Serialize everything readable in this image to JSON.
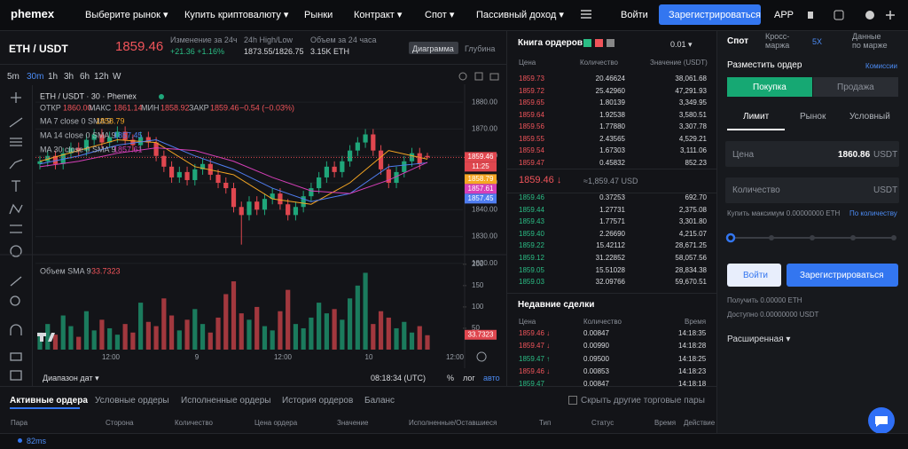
{
  "nav": {
    "logo": "phemex",
    "items": [
      "Выберите рынок ▾",
      "Купить криптовалюту ▾",
      "Рынки",
      "Контракт ▾",
      "Спот ▾",
      "Пассивный доход ▾"
    ],
    "login": "Войти",
    "register": "Зарегистрироваться",
    "app": "APP"
  },
  "ticker": {
    "pair": "ETH / USDT",
    "price": "1859.46",
    "change_label": "Изменение за 24ч",
    "change": "+21.36 +1.16%",
    "high_low_label": "24h High/Low",
    "high_low": "1873.55/1826.75",
    "volume_label": "Объем за 24 часа",
    "volume": "3.15K ETH",
    "chart_button": "Диаграмма",
    "depth_button": "Глубина"
  },
  "timeframes": [
    "5m",
    "30m",
    "1h",
    "3h",
    "6h",
    "12h",
    "W"
  ],
  "legend": {
    "title": "ETH / USDT · 30 · Phemex",
    "open_label": "ОТКР",
    "open": "1860.00",
    "high_label": "МАКС",
    "high": "1861.14",
    "low_label": "МИН",
    "low": "1858.92",
    "close_label": "ЗАКР",
    "close": "1859.46",
    "change": "−0.54 (−0.03%)",
    "countdown": "11:25"
  },
  "chart_data": {
    "type": "candlestick",
    "up_color": "#1fa67a",
    "down_color": "#e0474f",
    "open": [
      1857,
      1858,
      1860,
      1857,
      1861,
      1863,
      1862,
      1866,
      1868,
      1865,
      1867,
      1869,
      1866,
      1864,
      1867,
      1865,
      1860,
      1856,
      1852,
      1854,
      1851,
      1855,
      1857,
      1853,
      1850,
      1848,
      1841,
      1838,
      1843,
      1840,
      1844,
      1846,
      1842,
      1838,
      1841,
      1845,
      1848,
      1852,
      1856,
      1854,
      1858,
      1862,
      1865,
      1868,
      1862,
      1855,
      1850,
      1854,
      1858,
      1861,
      1860
    ],
    "high": [
      1860,
      1862,
      1862,
      1863,
      1865,
      1865,
      1868,
      1870,
      1870,
      1869,
      1871,
      1871,
      1868,
      1869,
      1869,
      1867,
      1862,
      1858,
      1856,
      1856,
      1857,
      1859,
      1859,
      1855,
      1852,
      1850,
      1843,
      1845,
      1845,
      1846,
      1848,
      1848,
      1844,
      1843,
      1847,
      1850,
      1854,
      1858,
      1858,
      1860,
      1864,
      1867,
      1870,
      1870,
      1864,
      1857,
      1856,
      1860,
      1863,
      1863,
      1861.14
    ],
    "low": [
      1855,
      1856,
      1855,
      1855,
      1859,
      1860,
      1860,
      1864,
      1863,
      1863,
      1865,
      1864,
      1862,
      1862,
      1863,
      1858,
      1854,
      1850,
      1850,
      1849,
      1849,
      1853,
      1851,
      1848,
      1846,
      1839,
      1827,
      1836,
      1838,
      1838,
      1842,
      1840,
      1836,
      1836,
      1839,
      1843,
      1846,
      1850,
      1852,
      1852,
      1856,
      1860,
      1863,
      1860,
      1853,
      1848,
      1848,
      1852,
      1856,
      1855,
      1858.92
    ],
    "close": [
      1858,
      1860,
      1857,
      1861,
      1863,
      1862,
      1866,
      1868,
      1865,
      1867,
      1869,
      1866,
      1864,
      1867,
      1865,
      1860,
      1856,
      1852,
      1854,
      1851,
      1855,
      1857,
      1853,
      1850,
      1848,
      1841,
      1838,
      1843,
      1840,
      1844,
      1846,
      1842,
      1838,
      1841,
      1845,
      1848,
      1852,
      1856,
      1854,
      1858,
      1862,
      1865,
      1868,
      1862,
      1855,
      1850,
      1854,
      1858,
      1861,
      1857,
      1859.46
    ],
    "ylim": [
      1815,
      1885
    ],
    "yticks": [
      {
        "value": 1880,
        "label": "1880.00"
      },
      {
        "value": 1870,
        "label": "1870.00"
      },
      {
        "value": 1860,
        "label": "1860.00"
      },
      {
        "value": 1850,
        "label": "1850.00"
      },
      {
        "value": 1840,
        "label": "1840.00"
      },
      {
        "value": 1830,
        "label": "1830.00"
      },
      {
        "value": 1820,
        "label": "1820.00"
      }
    ],
    "x_labels": [
      "12:00",
      "9",
      "12:00",
      "10",
      "12:00"
    ],
    "ma_x": [
      0,
      5,
      10,
      15,
      20,
      25,
      30,
      35,
      40,
      45,
      50
    ],
    "ma": [
      {
        "name": "MA 7 close 0 SMA 9",
        "color": "#f5a623",
        "values": [
          1858,
          1862,
          1866,
          1865,
          1856,
          1853,
          1844,
          1842,
          1850,
          1862,
          1858.79
        ]
      },
      {
        "name": "MA 14 close 0 SMA 9",
        "color": "#4f7df0",
        "values": [
          1857,
          1860,
          1864,
          1866,
          1860,
          1855,
          1848,
          1843,
          1846,
          1856,
          1857.45
        ]
      },
      {
        "name": "MA 30 close 0 SMA 9",
        "color": "#d63fb8",
        "values": [
          1856,
          1858,
          1861,
          1863,
          1862,
          1858,
          1852,
          1847,
          1846,
          1851,
          1857.61
        ]
      }
    ],
    "volume": {
      "name": "Объем SMA 9",
      "values": [
        40,
        60,
        35,
        80,
        55,
        30,
        90,
        45,
        70,
        50,
        35,
        60,
        40,
        110,
        65,
        55,
        120,
        80,
        45,
        70,
        95,
        60,
        40,
        75,
        130,
        160,
        85,
        70,
        100,
        55,
        45,
        90,
        140,
        60,
        50,
        75,
        110,
        85,
        95,
        70,
        120,
        150,
        180,
        60,
        90,
        75,
        50,
        65,
        40,
        55,
        33.7323
      ],
      "ylim": [
        0,
        210
      ],
      "yticks": [
        50,
        100,
        150,
        200
      ]
    }
  },
  "chart_footer": {
    "range": "Диапазон дат ▾",
    "time": "08:18:34 (UTC)",
    "percent": "%",
    "log": "лог",
    "auto": "авто"
  },
  "orderbook": {
    "title": "Книга ордеров",
    "step": "0.01 ▾",
    "columns": [
      "Цена",
      "Количество",
      "Значение (USDT)"
    ],
    "asks": [
      [
        "1859.73",
        "20.46624",
        "38,061.68"
      ],
      [
        "1859.72",
        "25.42960",
        "47,291.93"
      ],
      [
        "1859.65",
        "1.80139",
        "3,349.95"
      ],
      [
        "1859.64",
        "1.92538",
        "3,580.51"
      ],
      [
        "1859.56",
        "1.77880",
        "3,307.78"
      ],
      [
        "1859.55",
        "2.43565",
        "4,529.21"
      ],
      [
        "1859.54",
        "1.67303",
        "3,111.06"
      ],
      [
        "1859.47",
        "0.45832",
        "852.23"
      ]
    ],
    "mid_price": "1859.46 ↓",
    "mid_usd": "≈1,859.47 USD",
    "bids": [
      [
        "1859.46",
        "0.37253",
        "692.70"
      ],
      [
        "1859.44",
        "1.27731",
        "2,375.08"
      ],
      [
        "1859.43",
        "1.77571",
        "3,301.80"
      ],
      [
        "1859.40",
        "2.26690",
        "4,215.07"
      ],
      [
        "1859.22",
        "15.42112",
        "28,671.25"
      ],
      [
        "1859.12",
        "31.22852",
        "58,057.56"
      ],
      [
        "1859.05",
        "15.51028",
        "28,834.38"
      ],
      [
        "1859.03",
        "32.09766",
        "59,670.51"
      ]
    ]
  },
  "trades": {
    "title": "Недавние сделки",
    "columns": [
      "Цена",
      "Количество",
      "Время"
    ],
    "rows": [
      {
        "price": "1859.46 ↓",
        "qty": "0.00847",
        "time": "14:18:35",
        "color": "#f0545a"
      },
      {
        "price": "1859.47 ↓",
        "qty": "0.00990",
        "time": "14:18:28",
        "color": "#f0545a"
      },
      {
        "price": "1859.47 ↑",
        "qty": "0.09500",
        "time": "14:18:25",
        "color": "#2bbd85"
      },
      {
        "price": "1859.46 ↓",
        "qty": "0.00853",
        "time": "14:18:23",
        "color": "#f0545a"
      },
      {
        "price": "1859.47",
        "qty": "0.00847",
        "time": "14:18:18",
        "color": "#2bbd85"
      }
    ]
  },
  "order_panel": {
    "tabs": [
      "Спот",
      "Кросс-маржа",
      "5X",
      "Данные по марже"
    ],
    "title": "Разместить ордер",
    "fees": "Комиссии",
    "buy": "Покупка",
    "sell": "Продажа",
    "order_types": [
      "Лимит",
      "Рынок",
      "Условный"
    ],
    "price_label": "Цена",
    "price": "1860.86",
    "price_unit": "USDT",
    "qty_label": "Количество",
    "qty_unit": "USDT",
    "max_buy": "Купить максимум 0.00000000 ETH",
    "by_qty": "По количеству",
    "login": "Войти",
    "register": "Зарегистрироваться",
    "receive": "Получить 0.00000 ETH",
    "available": "Доступно 0.00000000 USDT",
    "advanced": "Расширенная ▾"
  },
  "orders": {
    "tabs": [
      "Активные ордера",
      "Условные ордеры",
      "Исполненные ордеры",
      "История ордеров",
      "Баланс"
    ],
    "hide_pairs": "Скрыть другие торговые пары",
    "columns": [
      "Пара",
      "Сторона",
      "Количество",
      "Цена ордера",
      "Значение",
      "Исполненные/Оставшиеся",
      "Тип",
      "Статус",
      "Время",
      "Действие"
    ]
  },
  "status": {
    "latency": "82ms"
  }
}
